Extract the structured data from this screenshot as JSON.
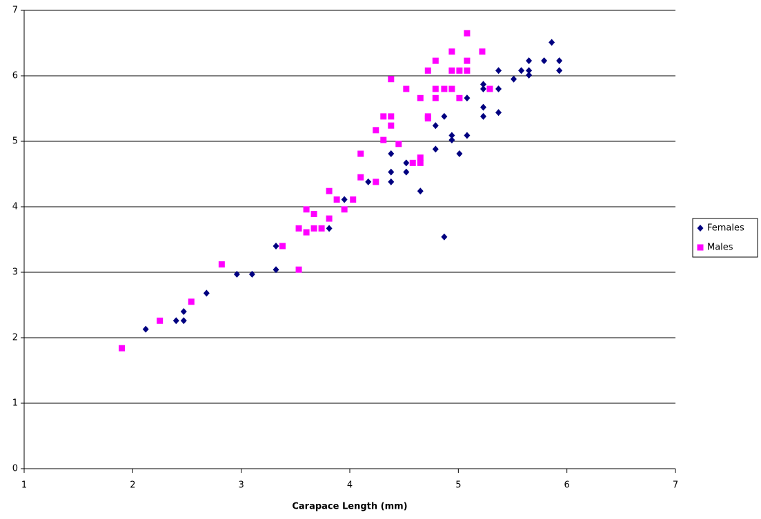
{
  "chart_data": {
    "type": "scatter",
    "xlabel": "Carapace Length (mm)",
    "xlim": [
      1,
      7
    ],
    "xticks": [
      1,
      2,
      3,
      4,
      5,
      6,
      7
    ],
    "ylim": [
      0,
      7
    ],
    "yticks": [
      0,
      1,
      2,
      3,
      4,
      5,
      6,
      7
    ],
    "grid": true,
    "legend": "right",
    "series": [
      {
        "name": "Females",
        "color": "#000080",
        "marker": "diamond",
        "x": [
          2.12,
          2.4,
          2.47,
          2.47,
          2.68,
          2.96,
          3.1,
          3.32,
          3.32,
          3.81,
          3.95,
          4.17,
          4.38,
          4.38,
          4.38,
          4.52,
          4.52,
          4.65,
          4.79,
          4.79,
          4.87,
          4.87,
          4.94,
          4.94,
          5.01,
          5.08,
          5.08,
          5.23,
          5.23,
          5.23,
          5.23,
          5.37,
          5.37,
          5.37,
          5.51,
          5.58,
          5.65,
          5.65,
          5.65,
          5.79,
          5.86,
          5.93,
          5.93
        ],
        "values": [
          2.13,
          2.26,
          2.26,
          2.4,
          2.68,
          2.97,
          2.97,
          3.04,
          3.4,
          3.67,
          4.11,
          4.38,
          4.38,
          4.53,
          4.81,
          4.53,
          4.67,
          4.24,
          4.88,
          5.24,
          3.54,
          5.38,
          5.02,
          5.09,
          4.81,
          5.09,
          5.66,
          5.38,
          5.52,
          5.8,
          5.87,
          5.44,
          5.8,
          6.08,
          5.95,
          6.08,
          6.23,
          6.08,
          6.01,
          6.23,
          6.51,
          6.23,
          6.08
        ]
      },
      {
        "name": "Males",
        "color": "#ff00ff",
        "marker": "square",
        "x": [
          1.9,
          2.25,
          2.54,
          2.82,
          3.38,
          3.53,
          3.53,
          3.6,
          3.6,
          3.67,
          3.67,
          3.74,
          3.81,
          3.81,
          3.88,
          3.95,
          4.03,
          4.1,
          4.1,
          4.24,
          4.24,
          4.31,
          4.31,
          4.38,
          4.38,
          4.38,
          4.45,
          4.52,
          4.58,
          4.65,
          4.65,
          4.65,
          4.72,
          4.72,
          4.72,
          4.79,
          4.79,
          4.79,
          4.87,
          4.94,
          4.94,
          4.94,
          5.01,
          5.01,
          5.08,
          5.08,
          5.08,
          5.22,
          5.29
        ],
        "values": [
          1.84,
          2.26,
          2.55,
          3.12,
          3.4,
          3.04,
          3.67,
          3.96,
          3.61,
          3.89,
          3.67,
          3.67,
          4.24,
          3.82,
          4.11,
          3.96,
          4.11,
          4.45,
          4.81,
          4.38,
          5.17,
          5.38,
          5.02,
          5.38,
          5.24,
          5.95,
          4.96,
          5.8,
          4.67,
          4.67,
          4.75,
          5.66,
          5.38,
          5.35,
          6.08,
          5.66,
          5.8,
          6.23,
          5.8,
          5.8,
          6.08,
          6.37,
          6.08,
          5.66,
          6.08,
          6.23,
          6.65,
          6.37,
          5.8
        ]
      }
    ]
  }
}
